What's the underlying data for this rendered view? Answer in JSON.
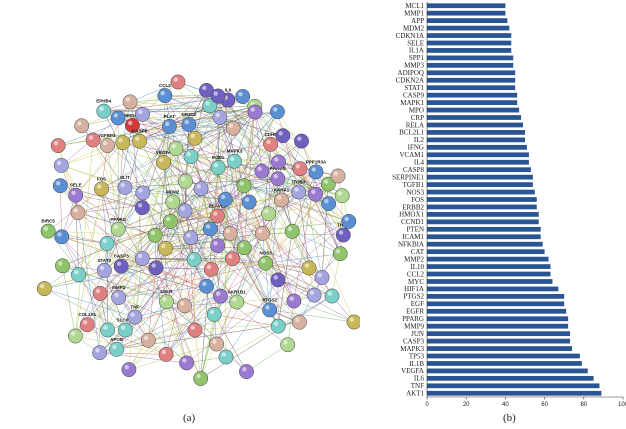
{
  "panels": {
    "a": {
      "caption": "(a)"
    },
    "b": {
      "caption": "(b)"
    }
  },
  "colors": {
    "bar": "#2a5595",
    "axis": "#333333",
    "edge_palette": [
      "#c9c33a",
      "#9fbf2a",
      "#3a3a3a",
      "#8a4aa8",
      "#2a7fbf",
      "#c24a4a",
      "#5aa04a"
    ],
    "node_palette": [
      "#8fc46a",
      "#5a8fd4",
      "#7ad0c8",
      "#d7b0a0",
      "#a4a4e0",
      "#c8b85a",
      "#e08080",
      "#6f5fc0",
      "#b0d890",
      "#9a7ad0"
    ]
  },
  "network": {
    "labels": [
      "THBD",
      "LDLR",
      "PLAT",
      "APOB",
      "NR3C2",
      "HMGCR",
      "PON1",
      "COL1A1",
      "MDM2",
      "CASP8",
      "PPP1R3A",
      "PTGS2",
      "IGFBP3",
      "MMP1",
      "MAPK3",
      "AKR1B1",
      "STAT3",
      "ITGB3",
      "CCL2",
      "NOS3",
      "SELE",
      "CASP3",
      "ELAVL1",
      "EPHB4",
      "PPARG",
      "SLC6A4",
      "SLIT",
      "PRKCG",
      "CDH5",
      "BIRC5",
      "KARA1",
      "VEGFA",
      "FOS",
      "TNF",
      "IL6"
    ]
  },
  "chart_data": {
    "type": "bar",
    "orientation": "horizontal",
    "categories": [
      "MCL1",
      "MMP1",
      "APP",
      "MDM2",
      "CDKN1A",
      "SELE",
      "IL1A",
      "SPP1",
      "MMP3",
      "ADIPOQ",
      "CDKN2A",
      "STAT1",
      "CASP9",
      "MAPK1",
      "MPO",
      "CRP",
      "RELA",
      "BCL2L1",
      "IL2",
      "IFNG",
      "VCAM1",
      "IL4",
      "CASP8",
      "SERPINE1",
      "TGFB1",
      "NOS3",
      "FOS",
      "ERBB2",
      "HMOX1",
      "CCND1",
      "PTEN",
      "ICAM1",
      "NFKBIA",
      "CAT",
      "MMP2",
      "IL10",
      "CCL2",
      "MYC",
      "HIF1A",
      "PTGS2",
      "EGF",
      "EGFR",
      "PPARG",
      "MMP9",
      "JUN",
      "CASP3",
      "MAPK3",
      "TP53",
      "IL1B",
      "VEGFA",
      "IL6",
      "TNF",
      "AKT1"
    ],
    "values": [
      40,
      40,
      41,
      42,
      43,
      43,
      43,
      44,
      44,
      45,
      45,
      45,
      46,
      46,
      47,
      48,
      49,
      50,
      50,
      51,
      52,
      52,
      53,
      54,
      54,
      55,
      56,
      56,
      57,
      57,
      58,
      58,
      59,
      60,
      62,
      63,
      63,
      64,
      67,
      70,
      70,
      71,
      72,
      72,
      73,
      73,
      74,
      78,
      79,
      82,
      85,
      88,
      89
    ],
    "xticks": [
      "0",
      "20",
      "40",
      "60",
      "80",
      "100"
    ],
    "xlim": [
      0,
      100
    ]
  }
}
